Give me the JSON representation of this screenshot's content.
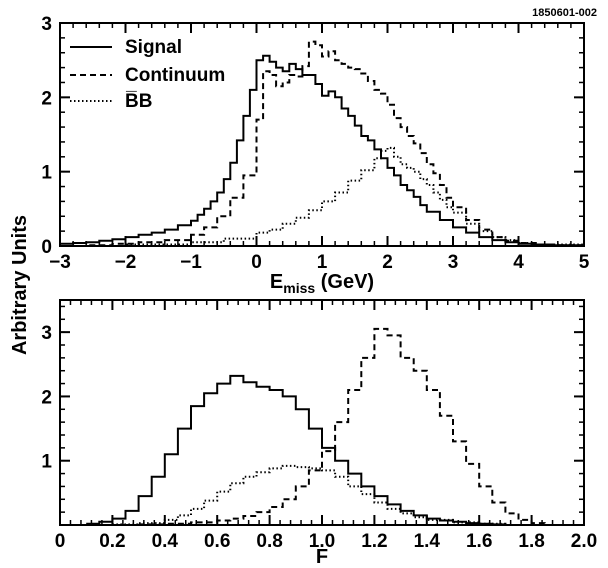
{
  "figure_id": "1850601-002",
  "ylabel": "Arbitrary Units",
  "chart_data": [
    {
      "type": "line",
      "step": true,
      "xlabel_main": "E",
      "xlabel_sub": "miss",
      "xlabel_unit": " (GeV)",
      "xlim": [
        -3,
        5
      ],
      "ylim": [
        0,
        3
      ],
      "xticks": [
        -3,
        -2,
        -1,
        0,
        1,
        2,
        3,
        4,
        5
      ],
      "xtick_labels": [
        "−3",
        "−2",
        "−1",
        "0",
        "1",
        "2",
        "3",
        "4",
        "5"
      ],
      "yticks": [
        0,
        1,
        2,
        3
      ],
      "ytick_labels": [
        "0",
        "1",
        "2",
        "3"
      ],
      "legend": "top-left",
      "series": [
        {
          "name": "Signal",
          "style": "solid",
          "x": [
            -3.0,
            -2.8,
            -2.6,
            -2.4,
            -2.2,
            -2.0,
            -1.8,
            -1.6,
            -1.4,
            -1.2,
            -1.0,
            -0.9,
            -0.8,
            -0.7,
            -0.6,
            -0.5,
            -0.4,
            -0.3,
            -0.2,
            -0.1,
            0.0,
            0.1,
            0.2,
            0.3,
            0.4,
            0.5,
            0.6,
            0.7,
            0.8,
            0.9,
            1.0,
            1.1,
            1.2,
            1.3,
            1.4,
            1.5,
            1.6,
            1.7,
            1.8,
            1.9,
            2.0,
            2.1,
            2.2,
            2.3,
            2.4,
            2.5,
            2.6,
            2.8,
            3.0,
            3.2,
            3.4,
            3.6,
            3.8,
            4.0,
            4.2,
            4.5,
            5.0
          ],
          "y": [
            0.03,
            0.04,
            0.05,
            0.07,
            0.09,
            0.12,
            0.15,
            0.18,
            0.22,
            0.28,
            0.34,
            0.42,
            0.5,
            0.6,
            0.72,
            0.9,
            1.12,
            1.42,
            1.75,
            2.1,
            2.5,
            2.56,
            2.48,
            2.4,
            2.35,
            2.45,
            2.38,
            2.3,
            2.3,
            2.18,
            2.02,
            2.08,
            2.0,
            1.85,
            1.75,
            1.62,
            1.48,
            1.42,
            1.3,
            1.18,
            1.05,
            0.95,
            0.82,
            0.75,
            0.66,
            0.55,
            0.46,
            0.35,
            0.25,
            0.18,
            0.12,
            0.08,
            0.05,
            0.03,
            0.02,
            0.01,
            0.0
          ]
        },
        {
          "name": "Continuum",
          "style": "dashed",
          "x": [
            -3.0,
            -2.6,
            -2.2,
            -1.8,
            -1.4,
            -1.0,
            -0.8,
            -0.6,
            -0.4,
            -0.2,
            0.0,
            0.1,
            0.2,
            0.3,
            0.4,
            0.5,
            0.6,
            0.7,
            0.8,
            0.9,
            1.0,
            1.1,
            1.2,
            1.3,
            1.4,
            1.5,
            1.6,
            1.7,
            1.8,
            1.9,
            2.0,
            2.1,
            2.2,
            2.3,
            2.4,
            2.5,
            2.6,
            2.7,
            2.8,
            2.9,
            3.0,
            3.2,
            3.4,
            3.6,
            3.8,
            4.0,
            4.3,
            4.6,
            5.0
          ],
          "y": [
            0.0,
            0.01,
            0.03,
            0.05,
            0.08,
            0.15,
            0.25,
            0.4,
            0.65,
            0.95,
            1.7,
            2.35,
            2.3,
            2.15,
            2.2,
            2.3,
            2.28,
            2.42,
            2.75,
            2.7,
            2.55,
            2.62,
            2.5,
            2.45,
            2.4,
            2.38,
            2.32,
            2.22,
            2.1,
            2.05,
            1.9,
            1.72,
            1.6,
            1.48,
            1.38,
            1.25,
            1.1,
            0.98,
            0.82,
            0.65,
            0.52,
            0.35,
            0.22,
            0.12,
            0.07,
            0.04,
            0.02,
            0.01,
            0.0
          ]
        },
        {
          "name": "B̅B",
          "style": "dotted",
          "x": [
            -3.0,
            -2.0,
            -1.0,
            -0.5,
            0.0,
            0.2,
            0.4,
            0.6,
            0.8,
            1.0,
            1.2,
            1.4,
            1.6,
            1.8,
            1.9,
            2.0,
            2.1,
            2.2,
            2.3,
            2.4,
            2.5,
            2.6,
            2.7,
            2.8,
            2.9,
            3.0,
            3.2,
            3.4,
            3.6,
            3.8,
            4.0,
            4.3,
            5.0
          ],
          "y": [
            0.0,
            0.02,
            0.05,
            0.1,
            0.18,
            0.22,
            0.3,
            0.38,
            0.48,
            0.6,
            0.72,
            0.88,
            1.02,
            1.18,
            1.28,
            1.32,
            1.2,
            1.1,
            1.05,
            1.0,
            0.9,
            0.82,
            0.72,
            0.62,
            0.52,
            0.45,
            0.3,
            0.2,
            0.12,
            0.08,
            0.04,
            0.02,
            0.0
          ]
        }
      ]
    },
    {
      "type": "line",
      "step": true,
      "xlabel": "F",
      "xlim": [
        0,
        2
      ],
      "ylim": [
        0,
        3.5
      ],
      "xticks": [
        0,
        0.2,
        0.4,
        0.6,
        0.8,
        1.0,
        1.2,
        1.4,
        1.6,
        1.8,
        2.0
      ],
      "xtick_labels": [
        "0",
        "0.2",
        "0.4",
        "0.6",
        "0.8",
        "1.0",
        "1.2",
        "1.4",
        "1.6",
        "1.8",
        "2.0"
      ],
      "yticks": [
        1,
        2,
        3
      ],
      "ytick_labels": [
        "1",
        "2",
        "3"
      ],
      "series": [
        {
          "name": "Signal",
          "style": "solid",
          "x": [
            0.1,
            0.15,
            0.2,
            0.25,
            0.3,
            0.35,
            0.4,
            0.45,
            0.5,
            0.55,
            0.6,
            0.65,
            0.7,
            0.75,
            0.8,
            0.85,
            0.9,
            0.95,
            1.0,
            1.05,
            1.1,
            1.15,
            1.2,
            1.25,
            1.3,
            1.35,
            1.4,
            1.45,
            1.5,
            1.55,
            1.6,
            1.65,
            1.7
          ],
          "y": [
            0.02,
            0.05,
            0.1,
            0.22,
            0.45,
            0.75,
            1.1,
            1.5,
            1.85,
            2.05,
            2.2,
            2.32,
            2.22,
            2.15,
            2.1,
            2.0,
            1.8,
            1.5,
            1.2,
            1.0,
            0.8,
            0.6,
            0.45,
            0.32,
            0.22,
            0.15,
            0.1,
            0.07,
            0.05,
            0.03,
            0.02,
            0.01,
            0.0
          ]
        },
        {
          "name": "Continuum",
          "style": "dashed",
          "x": [
            0.3,
            0.4,
            0.5,
            0.6,
            0.65,
            0.7,
            0.75,
            0.8,
            0.85,
            0.9,
            0.95,
            1.0,
            1.05,
            1.1,
            1.15,
            1.2,
            1.25,
            1.3,
            1.35,
            1.4,
            1.45,
            1.5,
            1.55,
            1.6,
            1.65,
            1.7,
            1.75,
            1.8,
            1.85
          ],
          "y": [
            0.01,
            0.02,
            0.04,
            0.07,
            0.1,
            0.14,
            0.2,
            0.28,
            0.4,
            0.6,
            0.85,
            1.15,
            1.6,
            2.1,
            2.6,
            3.05,
            2.95,
            2.6,
            2.4,
            2.1,
            1.7,
            1.3,
            0.95,
            0.6,
            0.35,
            0.18,
            0.08,
            0.03,
            0.0
          ]
        },
        {
          "name": "B̅B",
          "style": "dotted",
          "x": [
            0.2,
            0.3,
            0.4,
            0.45,
            0.5,
            0.55,
            0.6,
            0.65,
            0.7,
            0.75,
            0.8,
            0.85,
            0.9,
            0.95,
            1.0,
            1.05,
            1.1,
            1.15,
            1.2,
            1.25,
            1.3,
            1.35,
            1.4,
            1.5,
            1.6,
            1.7
          ],
          "y": [
            0.01,
            0.03,
            0.08,
            0.15,
            0.25,
            0.38,
            0.52,
            0.65,
            0.75,
            0.82,
            0.88,
            0.92,
            0.9,
            0.88,
            0.85,
            0.75,
            0.6,
            0.48,
            0.35,
            0.25,
            0.18,
            0.12,
            0.08,
            0.04,
            0.02,
            0.0
          ]
        }
      ]
    }
  ]
}
